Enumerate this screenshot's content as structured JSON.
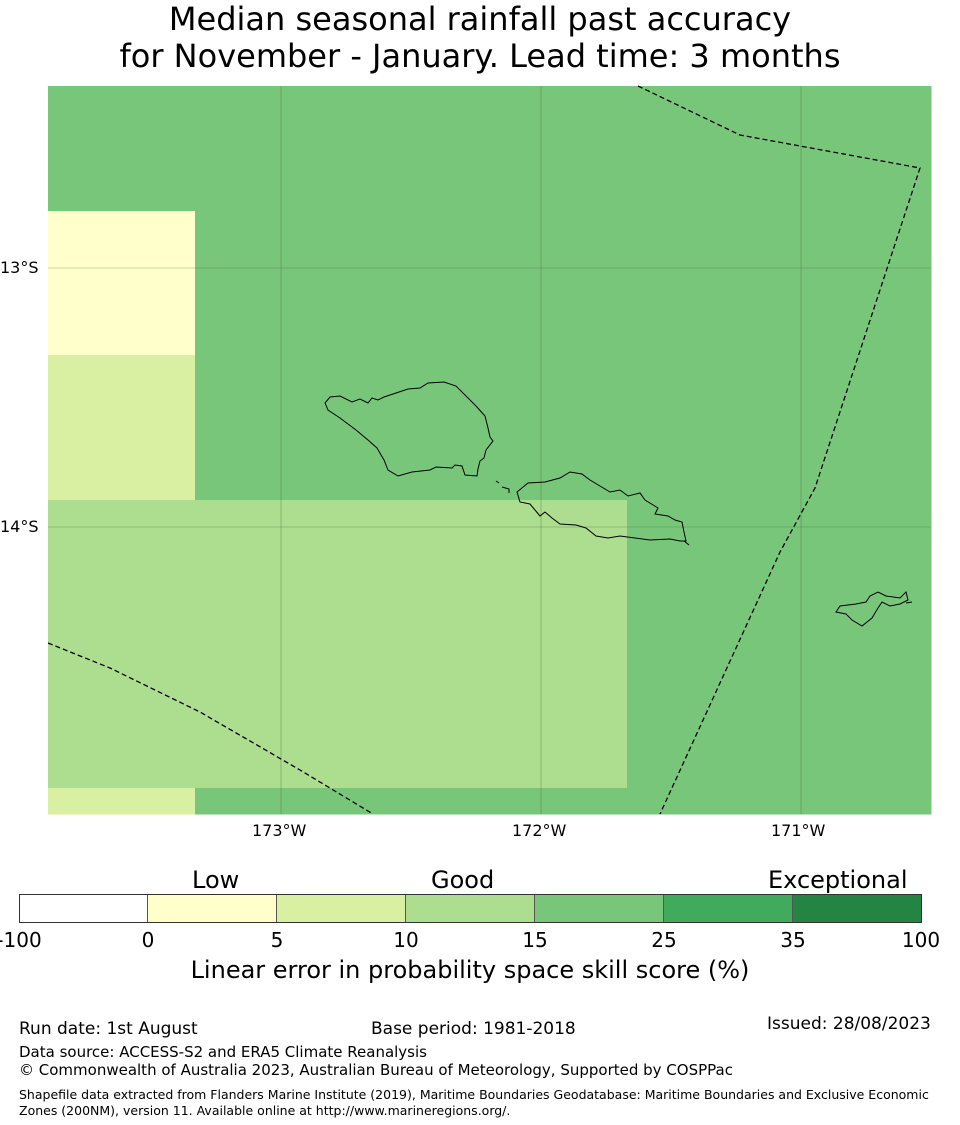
{
  "title": {
    "line1": "Median seasonal rainfall past accuracy",
    "line2": "for November - January. Lead time: 3 months"
  },
  "map": {
    "lon_labels": [
      "173°W",
      "172°W",
      "171°W"
    ],
    "lat_labels": [
      "13°S",
      "14°S"
    ],
    "grid": [
      [
        "#78c679",
        "#78c679",
        "#78c679",
        "#78c679",
        "#78c679",
        "#78c679",
        "#78c679",
        "#78c679",
        "#78c679",
        "#78c679",
        "#78c679",
        "#78c679",
        "#78c679",
        "#78c679",
        "#78c679",
        "#78c679",
        "#78c679"
      ],
      [
        "#ffffcc",
        "#78c679",
        "#78c679",
        "#78c679",
        "#78c679",
        "#78c679",
        "#78c679",
        "#78c679",
        "#78c679",
        "#78c679",
        "#78c679",
        "#78c679",
        "#addd8e",
        "#addd8e",
        "#addd8e",
        "#addd8e",
        "#78c679"
      ],
      [
        "#d9f0a3",
        "#78c679",
        "#78c679",
        "#78c679",
        "#78c679",
        "#78c679",
        "#78c679",
        "#78c679",
        "#78c679",
        "#78c679",
        "#78c679",
        "#78c679",
        "#78c679",
        "#78c679",
        "#78c679",
        "#78c679",
        "#41ab5d"
      ],
      [
        "#addd8e",
        "#addd8e",
        "#addd8e",
        "#addd8e",
        "#addd8e",
        "#addd8e",
        "#addd8e",
        "#78c679",
        "#78c679",
        "#78c679",
        "#78c679",
        "#78c679",
        "#41ab5d",
        "#41ab5d",
        "#41ab5d",
        "#41ab5d",
        "#41ab5d"
      ],
      [
        "#addd8e",
        "#addd8e",
        "#addd8e",
        "#addd8e",
        "#addd8e",
        "#addd8e",
        "#addd8e",
        "#78c679",
        "#78c679",
        "#78c679",
        "#78c679",
        "#78c679",
        "#78c679",
        "#78c679",
        "#78c679",
        "#78c679",
        "#41ab5d"
      ],
      [
        "#d9f0a3",
        "#78c679",
        "#78c679",
        "#78c679",
        "#78c679",
        "#78c679",
        "#78c679",
        "#78c679",
        "#78c679",
        "#78c679",
        "#78c679",
        "#78c679",
        "#78c679",
        "#78c679",
        "#78c679",
        "#78c679",
        "#78c679"
      ]
    ]
  },
  "legend": {
    "categories": [
      "Low",
      "Good",
      "Exceptional"
    ],
    "ticks": [
      "-100",
      "0",
      "5",
      "10",
      "15",
      "25",
      "35",
      "100"
    ],
    "colors": [
      "#ffffff",
      "#ffffcc",
      "#d9f0a3",
      "#addd8e",
      "#78c679",
      "#41ab5d",
      "#238443"
    ],
    "label": "Linear error in probability space skill score (%)"
  },
  "footer": {
    "run_date": "Run date: 1st August",
    "base_period": "Base period: 1981-2018",
    "issued": "Issued: 28/08/2023",
    "data_source": "Data source: ACCESS-S2 and ERA5 Climate Reanalysis",
    "copyright": "© Commonwealth of Australia 2023, Australian Bureau of Meteorology, Supported by COSPPac",
    "shapefile": "Shapefile data extracted from Flanders Marine Institute (2019), Maritime Boundaries Geodatabase: Maritime Boundaries and Exclusive Economic Zones (200NM), version 11. Available online at http://www.marineregions.org/."
  }
}
